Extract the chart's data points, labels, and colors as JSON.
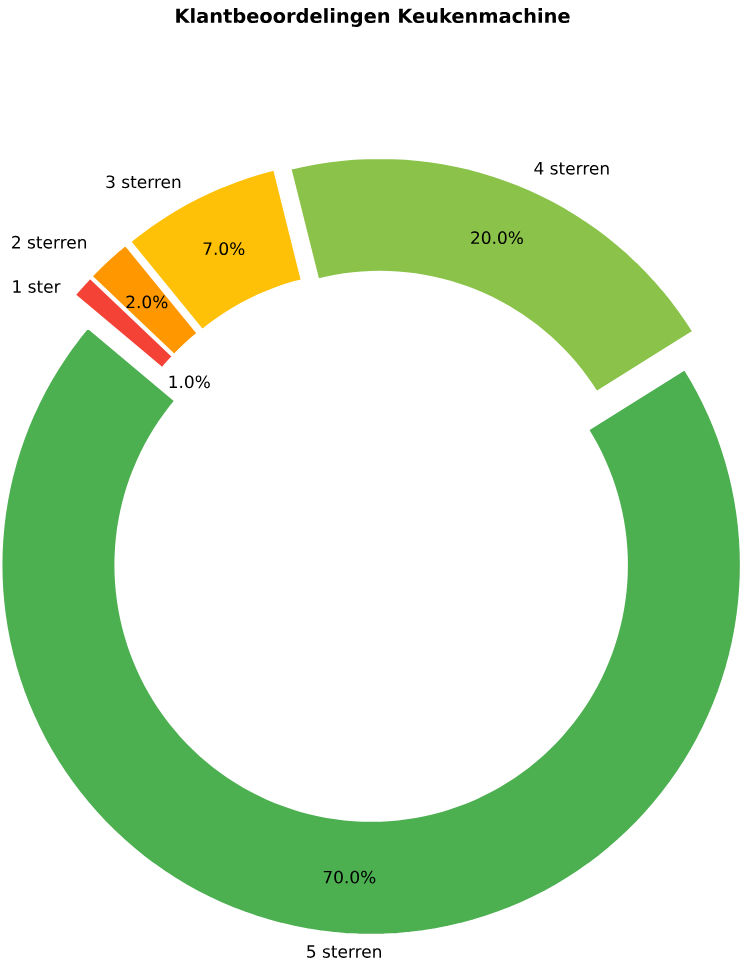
{
  "chart_data": {
    "type": "donut",
    "title": "Klantbeoordelingen Keukenmachine",
    "categories": [
      "1 ster",
      "2 sterren",
      "3 sterren",
      "4 sterren",
      "5 sterren"
    ],
    "values": [
      1,
      2,
      7,
      20,
      70
    ],
    "colors": [
      "#f44336",
      "#ff9800",
      "#ffc107",
      "#8bc34a",
      "#4caf50"
    ],
    "value_labels": [
      "1.0%",
      "2.0%",
      "7.0%",
      "20.0%",
      "70.0%"
    ]
  }
}
